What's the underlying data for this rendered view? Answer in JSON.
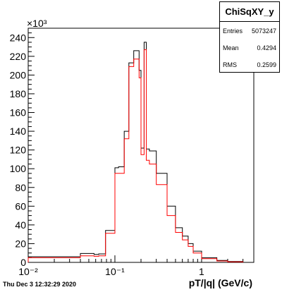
{
  "stats": {
    "title": "ChiSqXY_y",
    "rows": [
      {
        "label": "Entries",
        "value": "5073247"
      },
      {
        "label": "Mean",
        "value": "0.4294"
      },
      {
        "label": "RMS",
        "value": "0.2599"
      }
    ]
  },
  "timestamp": "Thu Dec  3 12:32:29 2020",
  "chart_data": {
    "type": "line",
    "title": "",
    "xlabel": "pT/|q| (GeV/c)",
    "ylabel": "",
    "y_multiplier_label": "×10³",
    "x_scale": "log",
    "xlim": [
      0.01,
      4.0
    ],
    "ylim": [
      0,
      250
    ],
    "x_ticks": [
      {
        "value": 0.01,
        "label": "10⁻²"
      },
      {
        "value": 0.1,
        "label": "10⁻¹"
      },
      {
        "value": 1,
        "label": "1"
      }
    ],
    "y_ticks": [
      0,
      20,
      40,
      60,
      80,
      100,
      120,
      140,
      160,
      180,
      200,
      220,
      240
    ],
    "grid": false,
    "legend": "none",
    "series": [
      {
        "color": "#000000",
        "edges": [
          0.01,
          0.04,
          0.0575,
          0.065,
          0.078,
          0.1,
          0.11,
          0.128,
          0.145,
          0.165,
          0.19,
          0.2,
          0.217,
          0.23,
          0.25,
          0.3,
          0.4,
          0.5,
          0.6,
          0.7,
          0.8,
          1.0,
          1.5,
          2.0,
          3.0
        ],
        "values": [
          6,
          9.5,
          8.5,
          9,
          34,
          101,
          102,
          140,
          213,
          226,
          205,
          122,
          235,
          121,
          119,
          95,
          60,
          37,
          28,
          20,
          12,
          5,
          2,
          1
        ]
      },
      {
        "color": "#ff0000",
        "edges": [
          0.01,
          0.04,
          0.0575,
          0.065,
          0.078,
          0.1,
          0.11,
          0.128,
          0.145,
          0.165,
          0.19,
          0.2,
          0.217,
          0.23,
          0.25,
          0.3,
          0.4,
          0.5,
          0.6,
          0.7,
          0.8,
          1.0,
          1.5,
          2.0,
          3.0
        ],
        "values": [
          5,
          7,
          6.5,
          7,
          31,
          95,
          95,
          132,
          209,
          217,
          197,
          115,
          227,
          109,
          105,
          83,
          50,
          32,
          24,
          17,
          10,
          4,
          1.5,
          0.5
        ]
      }
    ]
  }
}
